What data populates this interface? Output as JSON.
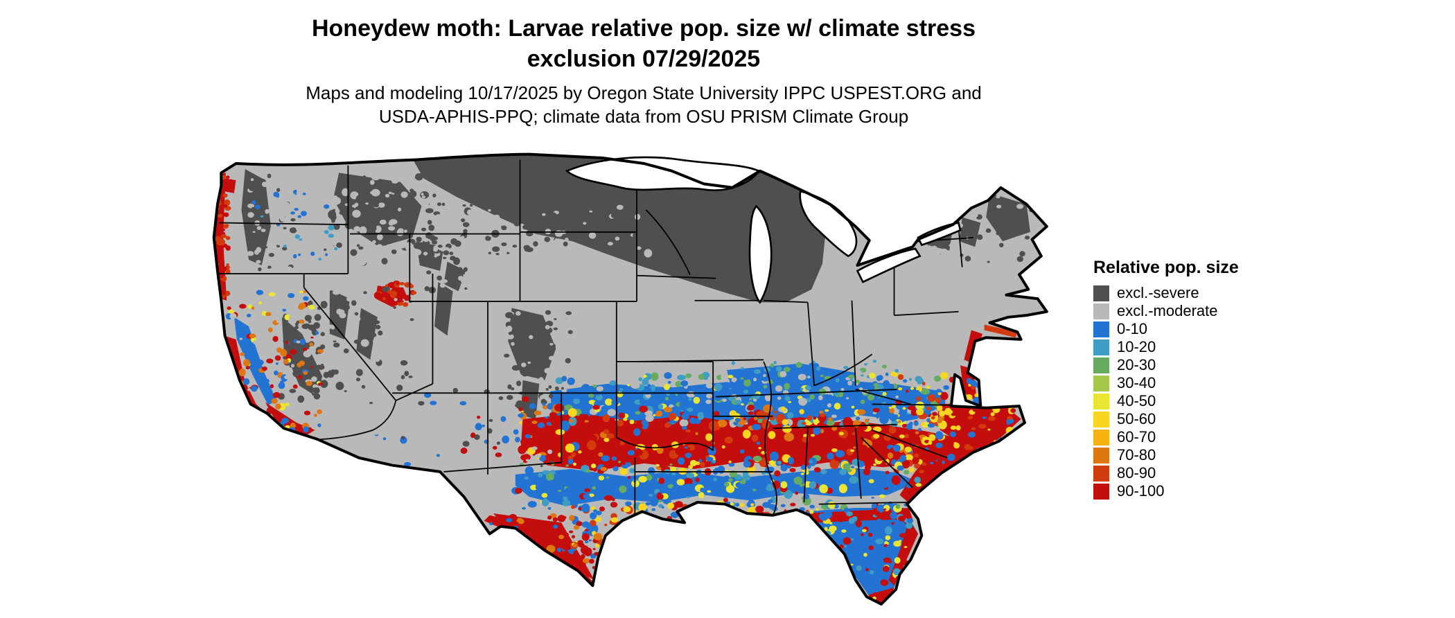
{
  "title": {
    "line1": "Honeydew moth: Larvae relative pop. size w/ climate stress",
    "line2": "exclusion 07/29/2025"
  },
  "subtitle": {
    "line1": "Maps and modeling 10/17/2025 by Oregon State University IPPC USPEST.ORG and",
    "line2": "USDA-APHIS-PPQ; climate data from OSU PRISM Climate Group"
  },
  "legend": {
    "title": "Relative pop. size",
    "items": [
      {
        "key": "severe",
        "label": "excl.-severe",
        "color": "#4f4f4f"
      },
      {
        "key": "moderate",
        "label": "excl.-moderate",
        "color": "#b9b9b9"
      },
      {
        "key": "b0",
        "label": "0-10",
        "color": "#2273d2"
      },
      {
        "key": "b10",
        "label": "10-20",
        "color": "#3f9dc4"
      },
      {
        "key": "g20",
        "label": "20-30",
        "color": "#66ab61"
      },
      {
        "key": "g30",
        "label": "30-40",
        "color": "#a6c84b"
      },
      {
        "key": "y40",
        "label": "40-50",
        "color": "#e9e534"
      },
      {
        "key": "y50",
        "label": "50-60",
        "color": "#f7d520"
      },
      {
        "key": "y60",
        "label": "60-70",
        "color": "#f5b211"
      },
      {
        "key": "o70",
        "label": "70-80",
        "color": "#de7612"
      },
      {
        "key": "o80",
        "label": "80-90",
        "color": "#d23b0e"
      },
      {
        "key": "r90",
        "label": "90-100",
        "color": "#c40d0d"
      }
    ]
  }
}
